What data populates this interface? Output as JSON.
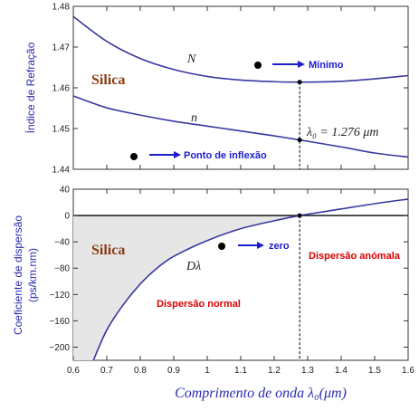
{
  "chart_data": [
    {
      "type": "line",
      "ylabel": "Índice de Refração",
      "xlim": [
        0.6,
        1.6
      ],
      "ylim": [
        1.44,
        1.48
      ],
      "yticks": [
        "1.44",
        "1.45",
        "1.46",
        "1.47",
        "1.48"
      ],
      "series": [
        {
          "name": "N",
          "x": [
            0.6,
            0.7,
            0.8,
            0.9,
            1.0,
            1.1,
            1.2,
            1.276,
            1.4,
            1.5,
            1.6
          ],
          "values": [
            1.4775,
            1.4714,
            1.4672,
            1.4645,
            1.4628,
            1.4619,
            1.4615,
            1.4614,
            1.4616,
            1.4622,
            1.463
          ]
        },
        {
          "name": "n",
          "x": [
            0.6,
            0.7,
            0.8,
            0.9,
            1.0,
            1.1,
            1.2,
            1.276,
            1.4,
            1.5,
            1.6
          ],
          "values": [
            1.458,
            1.4551,
            1.4533,
            1.4518,
            1.4506,
            1.4494,
            1.4482,
            1.4472,
            1.4455,
            1.444,
            1.443
          ]
        }
      ],
      "curve_labels": {
        "N": "N",
        "n": "n"
      },
      "annotations": {
        "material": "Silica",
        "minimum": "Mínimo",
        "inflection": "Ponto de inflexão",
        "lambda0": "λ₀ = 1.276  μm"
      }
    },
    {
      "type": "area",
      "ylabel": "Coeficiente de dispersão",
      "ylabel2": "(ps/km.nm)",
      "xlabel": "Comprimento de onda λ₀(μm)",
      "xlim": [
        0.6,
        1.6
      ],
      "ylim": [
        -220,
        40
      ],
      "xticks": [
        "0.6",
        "0.7",
        "0.8",
        "0.9",
        "1",
        "1.1",
        "1.2",
        "1.3",
        "1.4",
        "1.5",
        "1.6"
      ],
      "yticks": [
        "40",
        "0",
        "−40",
        "−80",
        "−120",
        "−160",
        "−200"
      ],
      "series": [
        {
          "name": "Dλ",
          "x": [
            0.66,
            0.7,
            0.75,
            0.8,
            0.85,
            0.9,
            1.0,
            1.1,
            1.2,
            1.276,
            1.3,
            1.4,
            1.5,
            1.6
          ],
          "values": [
            -220,
            -174,
            -135,
            -104,
            -80,
            -62,
            -38,
            -20,
            -8,
            0,
            2,
            10,
            18,
            25
          ]
        }
      ],
      "curve_label": "Dλ",
      "annotations": {
        "material": "Silica",
        "zero": "zero",
        "normal": "Dispersão normal",
        "anomalous": "Dispersão anómala"
      }
    }
  ],
  "colors": {
    "curve": "#3838a0",
    "fill": "#e6e6e6",
    "blue": "#1c1ccc",
    "red": "#dd0000",
    "silica": "#8a3a12"
  }
}
